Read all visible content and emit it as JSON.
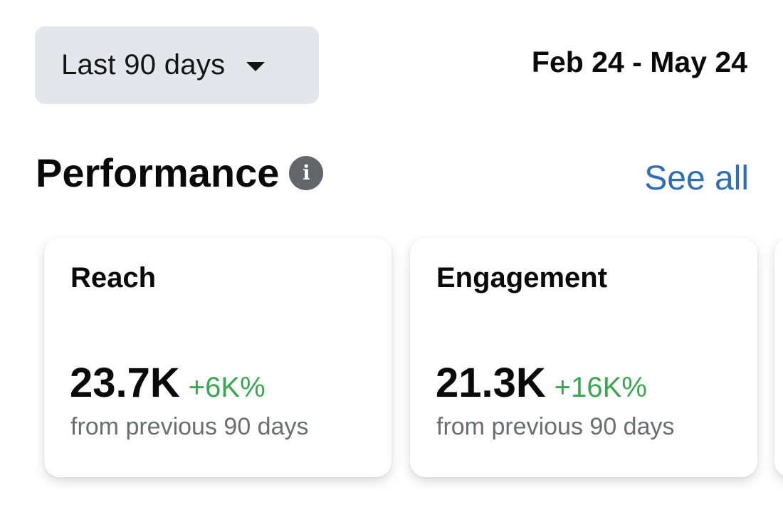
{
  "filter": {
    "range_label": "Last 90 days",
    "date_range": "Feb 24 - May 24"
  },
  "section": {
    "title": "Performance",
    "info_glyph": "i",
    "see_all_label": "See all"
  },
  "cards": [
    {
      "title": "Reach",
      "value": "23.7K",
      "change": "+6K%",
      "subtitle": "from previous 90 days"
    },
    {
      "title": "Engagement",
      "value": "21.3K",
      "change": "+16K%",
      "subtitle": "from previous 90 days"
    }
  ],
  "colors": {
    "accent_link": "#2d6fb7",
    "positive_change": "#3aa651",
    "select_background": "#e5e6eb"
  },
  "icons": {
    "dropdown": "caret-down-icon",
    "info": "info-icon"
  }
}
